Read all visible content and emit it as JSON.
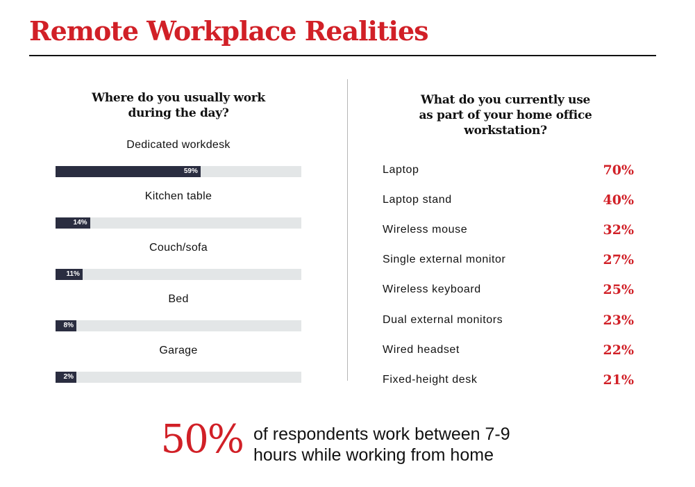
{
  "title": "Remote Workplace Realities",
  "colors": {
    "accent": "#d12027",
    "bar_fill": "#2a2d40",
    "bar_track": "#e3e6e7",
    "rule": "#111111"
  },
  "chart_data": [
    {
      "type": "bar",
      "title_lines": [
        "Where do you usually work",
        "during the day?"
      ],
      "categories": [
        "Dedicated workdesk",
        "Kitchen table",
        "Couch/sofa",
        "Bed",
        "Garage"
      ],
      "values": [
        59,
        14,
        11,
        8,
        2
      ],
      "value_labels": [
        "59%",
        "14%",
        "11%",
        "8%",
        "2%"
      ],
      "ylim": [
        0,
        100
      ],
      "orientation": "horizontal"
    },
    {
      "type": "table",
      "title_lines": [
        "What do you currently use",
        "as part of your home office",
        "workstation?"
      ],
      "categories": [
        "Laptop",
        "Laptop stand",
        "Wireless mouse",
        "Single external monitor",
        "Wireless keyboard",
        "Dual external monitors",
        "Wired headset",
        "Fixed-height desk"
      ],
      "values": [
        70,
        40,
        32,
        27,
        25,
        23,
        22,
        21
      ],
      "value_labels": [
        "70%",
        "40%",
        "32%",
        "27%",
        "25%",
        "23%",
        "22%",
        "21%"
      ]
    }
  ],
  "stat": {
    "number": "50%",
    "text_lines": [
      "of respondents work between 7-9",
      "hours while working from home"
    ]
  }
}
